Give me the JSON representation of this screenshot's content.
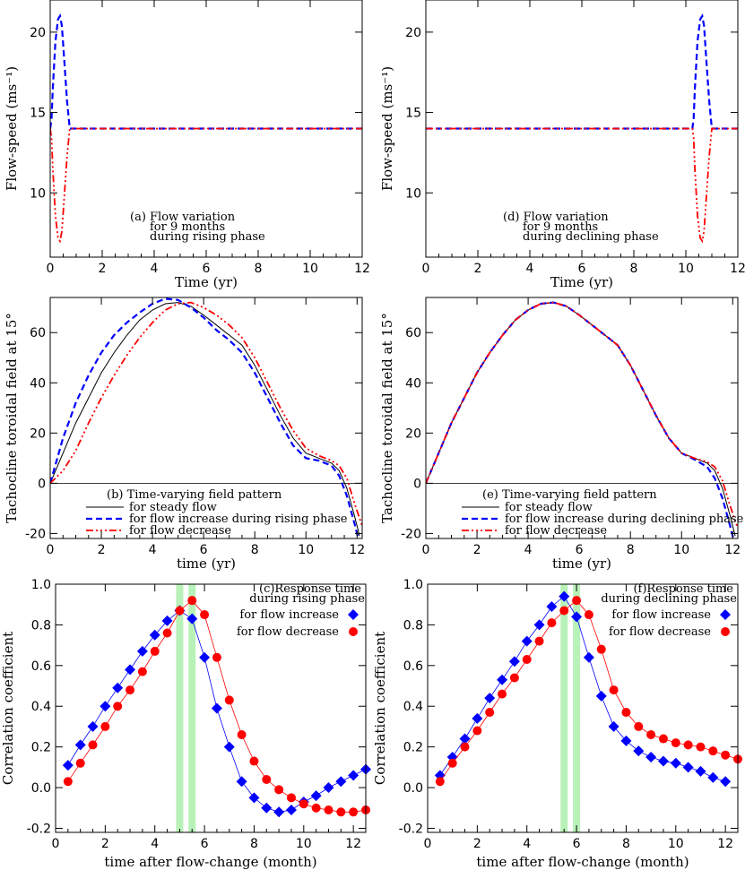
{
  "chart_data": [
    {
      "panel": "a",
      "type": "line",
      "xlabel": "Time (yr)",
      "ylabel": "Flow-speed (ms⁻¹)",
      "xlim": [
        0,
        12
      ],
      "ylim": [
        6,
        22
      ],
      "xticks": [
        0,
        2,
        4,
        6,
        8,
        10,
        12
      ],
      "yticks": [
        10,
        15,
        20
      ],
      "annotation": [
        "(a) Flow variation",
        "for 9 months",
        "during rising phase"
      ],
      "series": [
        {
          "style": "blue-dash",
          "color": "#0000ff",
          "x": [
            0,
            0.05,
            0.1,
            0.2,
            0.3,
            0.375,
            0.45,
            0.55,
            0.65,
            0.75,
            12
          ],
          "y": [
            14,
            14.6,
            16.5,
            19.4,
            20.8,
            21,
            20.4,
            18.0,
            15.7,
            14,
            14
          ]
        },
        {
          "style": "red-dashdot",
          "color": "#ff0000",
          "x": [
            0,
            0.05,
            0.1,
            0.2,
            0.3,
            0.375,
            0.45,
            0.55,
            0.65,
            0.75,
            12
          ],
          "y": [
            14,
            13.4,
            11.5,
            8.6,
            7.2,
            7,
            7.6,
            10.0,
            12.3,
            14,
            14
          ]
        }
      ]
    },
    {
      "panel": "d",
      "type": "line",
      "xlabel": "Time (yr)",
      "ylabel": "Flow-speed (ms⁻¹)",
      "xlim": [
        0,
        12
      ],
      "ylim": [
        6,
        22
      ],
      "xticks": [
        0,
        2,
        4,
        6,
        8,
        10,
        12
      ],
      "yticks": [
        10,
        15,
        20
      ],
      "annotation": [
        "(d) Flow variation",
        "for 9 months",
        "during declining phase"
      ],
      "series": [
        {
          "style": "blue-dash",
          "color": "#0000ff",
          "x": [
            0,
            10.25,
            10.3,
            10.35,
            10.45,
            10.55,
            10.63,
            10.7,
            10.8,
            10.9,
            11.0,
            12
          ],
          "y": [
            14,
            14,
            14.6,
            16.5,
            19.4,
            20.8,
            21,
            20.4,
            18.0,
            15.7,
            14,
            14
          ]
        },
        {
          "style": "red-dashdot",
          "color": "#ff0000",
          "x": [
            0,
            10.25,
            10.3,
            10.35,
            10.45,
            10.55,
            10.63,
            10.7,
            10.8,
            10.9,
            11.0,
            12
          ],
          "y": [
            14,
            14,
            13.4,
            11.5,
            8.6,
            7.2,
            7,
            7.6,
            10.0,
            12.3,
            14,
            14
          ]
        }
      ]
    },
    {
      "panel": "b",
      "type": "line",
      "xlabel": "time (yr)",
      "ylabel": "Tachocline toroidal field at 15°",
      "xlim": [
        0,
        12.2
      ],
      "ylim": [
        -22,
        74
      ],
      "xticks": [
        0,
        2,
        4,
        6,
        8,
        10,
        12
      ],
      "yticks": [
        -20,
        0,
        20,
        40,
        60
      ],
      "annotation": [
        "(b) Time-varying field pattern"
      ],
      "series": [
        {
          "name": "for steady flow",
          "style": "black-solid",
          "color": "#000000",
          "x": [
            0,
            0.5,
            1,
            1.5,
            2,
            2.5,
            3,
            3.5,
            4,
            4.5,
            5,
            5.5,
            6,
            6.5,
            7,
            7.5,
            8,
            8.5,
            9,
            9.5,
            10,
            10.5,
            11,
            11.3,
            11.6,
            11.9,
            12.1
          ],
          "y": [
            0,
            12,
            24,
            34,
            44,
            52,
            59,
            65,
            69,
            71.5,
            72,
            70.5,
            67,
            63,
            59,
            55,
            47,
            37,
            27,
            18,
            12,
            10,
            8,
            5,
            -2,
            -13,
            -21
          ]
        },
        {
          "name": "for flow increase during rising phase",
          "style": "blue-dash",
          "color": "#0000ff",
          "x": [
            0,
            0.5,
            1,
            1.5,
            2,
            2.5,
            3,
            3.5,
            4,
            4.5,
            5,
            5.5,
            6,
            6.5,
            7,
            7.5,
            8,
            8.5,
            9,
            9.5,
            10,
            10.5,
            11,
            11.3,
            11.6,
            11.9,
            12.1
          ],
          "y": [
            0,
            18,
            32,
            43,
            52,
            59,
            64,
            68,
            71.5,
            73.5,
            73,
            70,
            66,
            61,
            57,
            52,
            44,
            34,
            24,
            15,
            10,
            9,
            7,
            3,
            -5,
            -16,
            -24
          ]
        },
        {
          "name": "for flow decrease",
          "style": "red-dashdot",
          "color": "#ff0000",
          "x": [
            0,
            0.5,
            1,
            1.5,
            2,
            2.5,
            3,
            3.5,
            4,
            4.5,
            5,
            5.5,
            6,
            6.5,
            7,
            7.5,
            8,
            8.5,
            9,
            9.5,
            10,
            10.5,
            11,
            11.3,
            11.6,
            11.9,
            12.2
          ],
          "y": [
            0,
            5,
            13,
            24,
            34,
            43,
            51,
            58,
            64,
            69,
            71.5,
            72,
            70,
            67,
            63,
            58,
            50,
            40,
            30,
            21,
            14,
            11,
            9,
            7,
            2,
            -8,
            -17
          ]
        }
      ]
    },
    {
      "panel": "e",
      "type": "line",
      "xlabel": "time (yr)",
      "ylabel": "Tachocline toroidal field at 15°",
      "xlim": [
        0,
        12.2
      ],
      "ylim": [
        -22,
        74
      ],
      "xticks": [
        0,
        2,
        4,
        6,
        8,
        10,
        12
      ],
      "yticks": [
        -20,
        0,
        20,
        40,
        60
      ],
      "annotation": [
        "(e) Time-varying field pattern"
      ],
      "series": [
        {
          "name": "for steady flow",
          "style": "black-solid",
          "color": "#000000",
          "x": [
            0,
            0.5,
            1,
            1.5,
            2,
            2.5,
            3,
            3.5,
            4,
            4.5,
            5,
            5.5,
            6,
            6.5,
            7,
            7.5,
            8,
            8.5,
            9,
            9.5,
            10,
            10.5,
            11,
            11.3,
            11.6,
            11.9,
            12.1
          ],
          "y": [
            0,
            12,
            24,
            34,
            44,
            52,
            59,
            65,
            69,
            71.5,
            72,
            70.5,
            67,
            63,
            59,
            55,
            47,
            37,
            27,
            18,
            12,
            10,
            8,
            5,
            -2,
            -13,
            -21
          ]
        },
        {
          "name": "for flow increase during declining phase",
          "style": "blue-dash",
          "color": "#0000ff",
          "x": [
            0,
            0.5,
            1,
            1.5,
            2,
            2.5,
            3,
            3.5,
            4,
            4.5,
            5,
            5.5,
            6,
            6.5,
            7,
            7.5,
            8,
            8.5,
            9,
            9.5,
            10,
            10.5,
            11,
            11.3,
            11.6,
            11.9,
            12.1
          ],
          "y": [
            0,
            12,
            24,
            34,
            44,
            52,
            59,
            65,
            69,
            71.5,
            72,
            70.5,
            67,
            63,
            59,
            55,
            47,
            37,
            27,
            18,
            12,
            9.5,
            6.5,
            2,
            -6,
            -17,
            -25
          ]
        },
        {
          "name": "for flow decrease",
          "style": "red-dashdot",
          "color": "#ff0000",
          "x": [
            0,
            0.5,
            1,
            1.5,
            2,
            2.5,
            3,
            3.5,
            4,
            4.5,
            5,
            5.5,
            6,
            6.5,
            7,
            7.5,
            8,
            8.5,
            9,
            9.5,
            10,
            10.5,
            11,
            11.3,
            11.6,
            11.9,
            12.2
          ],
          "y": [
            0,
            12,
            24,
            34,
            44,
            52,
            59,
            65,
            69,
            71.5,
            72,
            70.5,
            67,
            63,
            59,
            55,
            47,
            37,
            27,
            18,
            12,
            10,
            8.5,
            6.5,
            1,
            -9,
            -18
          ]
        }
      ]
    },
    {
      "panel": "c",
      "type": "scatter",
      "xlabel": "time after flow-change (month)",
      "ylabel": "Correlation coefficient",
      "xlim": [
        0,
        12.5
      ],
      "ylim": [
        -0.22,
        1.0
      ],
      "xticks": [
        0,
        2,
        4,
        6,
        8,
        10,
        12
      ],
      "yticks": [
        -0.2,
        0.0,
        0.2,
        0.4,
        0.6,
        0.8,
        1.0
      ],
      "annotation": [
        "(c)Response time",
        "during rising phase"
      ],
      "bands": [
        5.0,
        5.5
      ],
      "series": [
        {
          "name": "for flow increase",
          "marker": "diamond",
          "color": "#0000ff",
          "x": [
            0.5,
            1,
            1.5,
            2,
            2.5,
            3,
            3.5,
            4,
            4.5,
            5,
            5.5,
            6,
            6.5,
            7,
            7.5,
            8,
            8.5,
            9,
            9.5,
            10,
            10.5,
            11,
            11.5,
            12,
            12.5
          ],
          "y": [
            0.11,
            0.21,
            0.3,
            0.4,
            0.49,
            0.58,
            0.67,
            0.75,
            0.82,
            0.87,
            0.83,
            0.64,
            0.39,
            0.2,
            0.03,
            -0.05,
            -0.1,
            -0.12,
            -0.11,
            -0.07,
            -0.04,
            0.0,
            0.03,
            0.06,
            0.09
          ]
        },
        {
          "name": "for flow decrease",
          "marker": "circle",
          "color": "#ff0000",
          "x": [
            0.5,
            1,
            1.5,
            2,
            2.5,
            3,
            3.5,
            4,
            4.5,
            5,
            5.5,
            6,
            6.5,
            7,
            7.5,
            8,
            8.5,
            9,
            9.5,
            10,
            10.5,
            11,
            11.5,
            12,
            12.5
          ],
          "y": [
            0.03,
            0.12,
            0.21,
            0.3,
            0.4,
            0.48,
            0.57,
            0.67,
            0.76,
            0.87,
            0.92,
            0.85,
            0.64,
            0.43,
            0.26,
            0.13,
            0.04,
            -0.01,
            -0.05,
            -0.08,
            -0.1,
            -0.11,
            -0.12,
            -0.12,
            -0.11
          ]
        }
      ]
    },
    {
      "panel": "f",
      "type": "scatter",
      "xlabel": "time after flow-change (month)",
      "ylabel": "Correlation coefficient",
      "xlim": [
        0,
        12.5
      ],
      "ylim": [
        -0.22,
        1.0
      ],
      "xticks": [
        0,
        2,
        4,
        6,
        8,
        10,
        12
      ],
      "yticks": [
        -0.2,
        0.0,
        0.2,
        0.4,
        0.6,
        0.8,
        1.0
      ],
      "annotation": [
        "(f)Response time",
        "during declining phase"
      ],
      "bands": [
        5.5,
        6.0
      ],
      "series": [
        {
          "name": "for flow increase",
          "marker": "diamond",
          "color": "#0000ff",
          "x": [
            0.5,
            1,
            1.5,
            2,
            2.5,
            3,
            3.5,
            4,
            4.5,
            5,
            5.5,
            6,
            6.5,
            7,
            7.5,
            8,
            8.5,
            9,
            9.5,
            10,
            10.5,
            11,
            11.5,
            12
          ],
          "y": [
            0.06,
            0.15,
            0.24,
            0.34,
            0.44,
            0.53,
            0.62,
            0.72,
            0.8,
            0.89,
            0.94,
            0.84,
            0.64,
            0.45,
            0.3,
            0.23,
            0.18,
            0.15,
            0.13,
            0.12,
            0.1,
            0.08,
            0.05,
            0.03
          ]
        },
        {
          "name": "for flow decrease",
          "marker": "circle",
          "color": "#ff0000",
          "x": [
            0.5,
            1,
            1.5,
            2,
            2.5,
            3,
            3.5,
            4,
            4.5,
            5,
            5.5,
            6,
            6.5,
            7,
            7.5,
            8,
            8.5,
            9,
            9.5,
            10,
            10.5,
            11,
            11.5,
            12,
            12.5
          ],
          "y": [
            0.03,
            0.12,
            0.2,
            0.28,
            0.37,
            0.46,
            0.54,
            0.63,
            0.72,
            0.81,
            0.87,
            0.92,
            0.85,
            0.68,
            0.48,
            0.37,
            0.3,
            0.26,
            0.24,
            0.22,
            0.21,
            0.2,
            0.18,
            0.16,
            0.14
          ]
        }
      ]
    }
  ]
}
